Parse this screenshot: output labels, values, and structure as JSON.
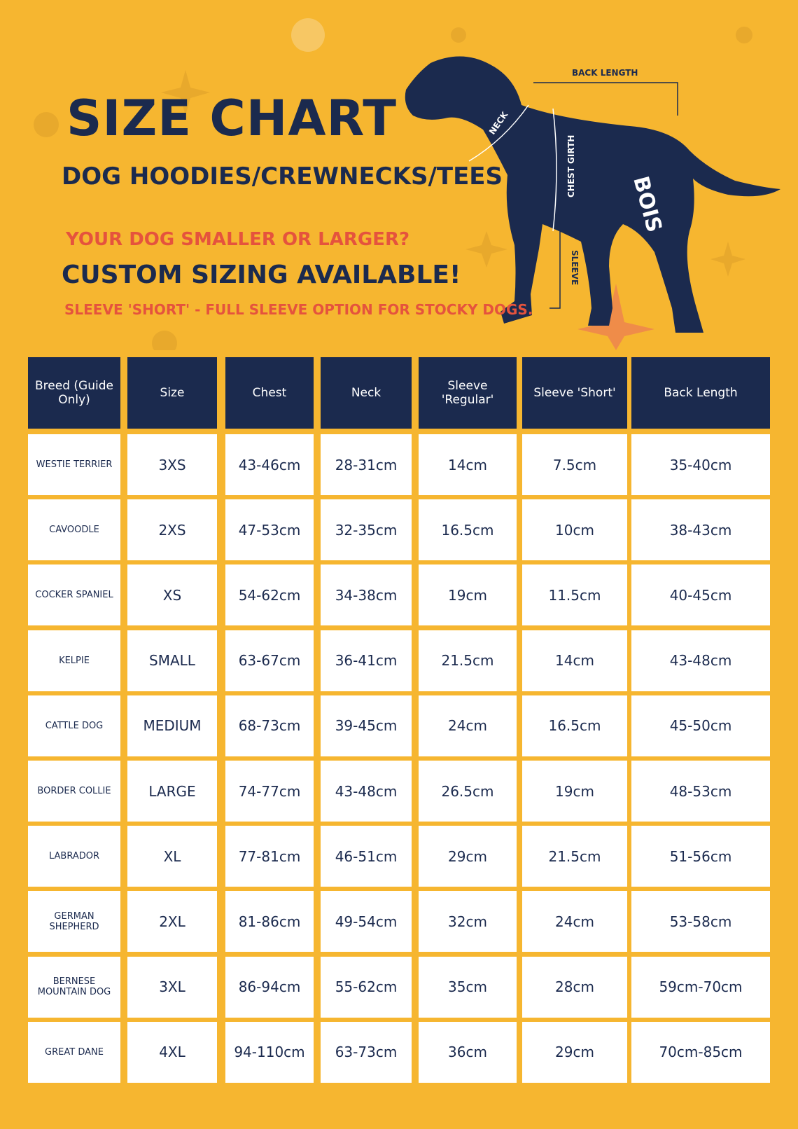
{
  "header": {
    "title": "SIZE CHART",
    "subtitle": "DOG HOODIES/CREWNECKS/TEES",
    "question": "YOUR DOG SMALLER OR LARGER?",
    "custom": "CUSTOM SIZING AVAILABLE!",
    "note": "SLEEVE 'SHORT' - FULL SLEEVE OPTION FOR STOCKY DOGS."
  },
  "diagram": {
    "back_length": "BACK LENGTH",
    "neck": "NECK",
    "chest_girth": "CHEST GIRTH",
    "sleeve": "SLEEVE",
    "brand": "BOIS"
  },
  "table": {
    "columns": [
      "Breed (Guide Only)",
      "Size",
      "Chest",
      "Neck",
      "Sleeve 'Regular'",
      "Sleeve 'Short'",
      "Back Length"
    ],
    "rows": [
      [
        "WESTIE TERRIER",
        "3XS",
        "43-46cm",
        "28-31cm",
        "14cm",
        "7.5cm",
        "35-40cm"
      ],
      [
        "CAVOODLE",
        "2XS",
        "47-53cm",
        "32-35cm",
        "16.5cm",
        "10cm",
        "38-43cm"
      ],
      [
        "COCKER SPANIEL",
        "XS",
        "54-62cm",
        "34-38cm",
        "19cm",
        "11.5cm",
        "40-45cm"
      ],
      [
        "KELPIE",
        "SMALL",
        "63-67cm",
        "36-41cm",
        "21.5cm",
        "14cm",
        "43-48cm"
      ],
      [
        "CATTLE DOG",
        "MEDIUM",
        "68-73cm",
        "39-45cm",
        "24cm",
        "16.5cm",
        "45-50cm"
      ],
      [
        "BORDER COLLIE",
        "LARGE",
        "74-77cm",
        "43-48cm",
        "26.5cm",
        "19cm",
        "48-53cm"
      ],
      [
        "LABRADOR",
        "XL",
        "77-81cm",
        "46-51cm",
        "29cm",
        "21.5cm",
        "51-56cm"
      ],
      [
        "GERMAN SHEPHERD",
        "2XL",
        "81-86cm",
        "49-54cm",
        "32cm",
        "24cm",
        "53-58cm"
      ],
      [
        "BERNESE MOUNTAIN DOG",
        "3XL",
        "86-94cm",
        "55-62cm",
        "35cm",
        "28cm",
        "59cm-70cm"
      ],
      [
        "GREAT DANE",
        "4XL",
        "94-110cm",
        "63-73cm",
        "36cm",
        "29cm",
        "70cm-85cm"
      ]
    ]
  }
}
